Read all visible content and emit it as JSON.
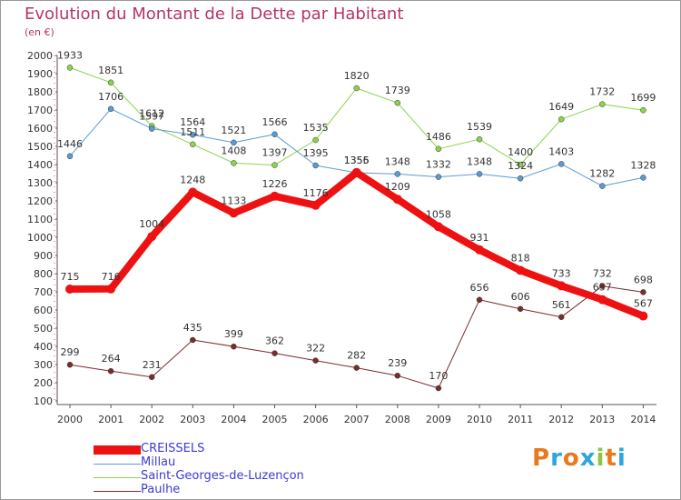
{
  "title": "Evolution du Montant de la Dette par Habitant",
  "subtitle": "(en €)",
  "logo": {
    "text": "Proxiti",
    "colors": [
      "#e8791e",
      "#2aa7de",
      "#e8791e",
      "#2aa7de",
      "#8cc63f",
      "#e8791e",
      "#2aa7de"
    ]
  },
  "chart_data": {
    "type": "line",
    "title": "Evolution du Montant de la Dette par Habitant",
    "subtitle": "(en €)",
    "xlabel": "",
    "ylabel": "",
    "x": [
      "2000",
      "2001",
      "2002",
      "2003",
      "2004",
      "2005",
      "2006",
      "2007",
      "2008",
      "2009",
      "2010",
      "2011",
      "2012",
      "2013",
      "2014"
    ],
    "yticks": [
      100,
      200,
      300,
      400,
      500,
      600,
      700,
      800,
      900,
      1000,
      1100,
      1200,
      1300,
      1400,
      1500,
      1600,
      1700,
      1800,
      1900,
      2000
    ],
    "ylim": [
      100,
      2000
    ],
    "grid": false,
    "legend_position": "bottom-left",
    "series": [
      {
        "name": "Saint-Georges-de-Luzençon",
        "color": "#8cd24a",
        "width": 1,
        "values": [
          1933,
          1851,
          1612,
          1511,
          1408,
          1397,
          1535,
          1820,
          1739,
          1486,
          1539,
          1400,
          1649,
          1732,
          1699
        ]
      },
      {
        "name": "Millau",
        "color": "#5b9bd5",
        "width": 1,
        "values": [
          1446,
          1706,
          1597,
          1564,
          1521,
          1566,
          1395,
          1355,
          1348,
          1332,
          1348,
          1324,
          1403,
          1282,
          1328
        ]
      },
      {
        "name": "Paulhe",
        "color": "#7b2c2c",
        "width": 1,
        "values": [
          299,
          264,
          231,
          435,
          399,
          362,
          322,
          282,
          239,
          170,
          656,
          606,
          561,
          732,
          698
        ]
      },
      {
        "name": "CREISSELS",
        "color": "#ee1111",
        "width": 8,
        "values": [
          715,
          716,
          1004,
          1248,
          1133,
          1226,
          1176,
          1356,
          1209,
          1058,
          931,
          818,
          733,
          657,
          567
        ]
      }
    ],
    "legend_order": [
      "CREISSELS",
      "Millau",
      "Saint-Georges-de-Luzençon",
      "Paulhe"
    ]
  }
}
